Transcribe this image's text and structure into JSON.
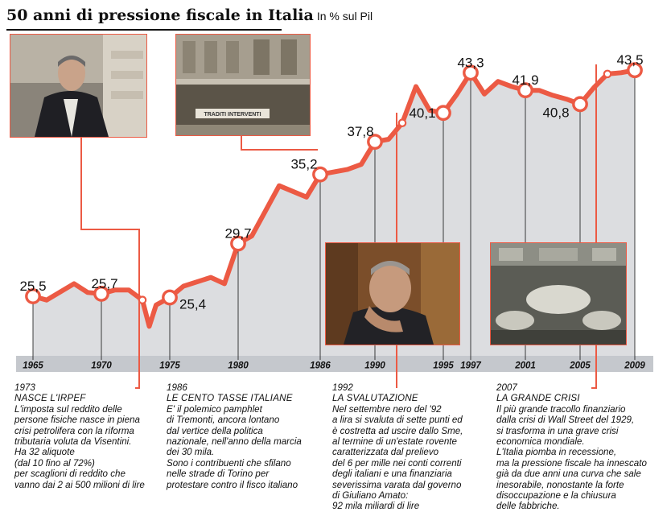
{
  "title": "50 anni di pressione fiscale in Italia",
  "unit": "In % sul Pil",
  "colors": {
    "line": "#ec5a44",
    "band": "#dcdde0",
    "axis": "#c5c8cd",
    "ink": "#111111"
  },
  "chart_data": {
    "type": "area",
    "title": "50 anni di pressione fiscale in Italia",
    "ylabel": "In % sul Pil",
    "xlim": [
      1965,
      2009
    ],
    "ylim": [
      20.5,
      45.5
    ],
    "x_ticks": [
      "1965",
      "1970",
      "1975",
      "1980",
      "1986",
      "1990",
      "1995",
      "1997",
      "2001",
      "2005",
      "2009"
    ],
    "series": [
      {
        "values": [
          {
            "x": 1965,
            "y": 25.5
          },
          {
            "x": 1966,
            "y": 25.2
          },
          {
            "x": 1968,
            "y": 26.5
          },
          {
            "x": 1969,
            "y": 25.8
          },
          {
            "x": 1970,
            "y": 25.7
          },
          {
            "x": 1971,
            "y": 26.0
          },
          {
            "x": 1972,
            "y": 26.0
          },
          {
            "x": 1973,
            "y": 25.2
          },
          {
            "x": 1973.5,
            "y": 23.1
          },
          {
            "x": 1974,
            "y": 24.8
          },
          {
            "x": 1975,
            "y": 25.4
          },
          {
            "x": 1976,
            "y": 26.3
          },
          {
            "x": 1978,
            "y": 27.0
          },
          {
            "x": 1979,
            "y": 26.5
          },
          {
            "x": 1980,
            "y": 29.7
          },
          {
            "x": 1981,
            "y": 30.3
          },
          {
            "x": 1982,
            "y": 32.3
          },
          {
            "x": 1983,
            "y": 34.3
          },
          {
            "x": 1985,
            "y": 33.4
          },
          {
            "x": 1986,
            "y": 35.2
          },
          {
            "x": 1988,
            "y": 35.6
          },
          {
            "x": 1989,
            "y": 36.0
          },
          {
            "x": 1990,
            "y": 37.8
          },
          {
            "x": 1991,
            "y": 38.0
          },
          {
            "x": 1992,
            "y": 39.3
          },
          {
            "x": 1993,
            "y": 42.2
          },
          {
            "x": 1994,
            "y": 40.3
          },
          {
            "x": 1995,
            "y": 40.1
          },
          {
            "x": 1996,
            "y": 41.6
          },
          {
            "x": 1997,
            "y": 43.3
          },
          {
            "x": 1998,
            "y": 41.6
          },
          {
            "x": 1999,
            "y": 42.6
          },
          {
            "x": 2000,
            "y": 42.2
          },
          {
            "x": 2001,
            "y": 41.9
          },
          {
            "x": 2002,
            "y": 41.9
          },
          {
            "x": 2003,
            "y": 41.5
          },
          {
            "x": 2004,
            "y": 41.2
          },
          {
            "x": 2005,
            "y": 40.8
          },
          {
            "x": 2006,
            "y": 42.1
          },
          {
            "x": 2007,
            "y": 43.2
          },
          {
            "x": 2008,
            "y": 43.3
          },
          {
            "x": 2009,
            "y": 43.5
          }
        ]
      }
    ],
    "data_labels": [
      {
        "x": 1965,
        "text": "25,5"
      },
      {
        "x": 1970,
        "text": "25,7"
      },
      {
        "x": 1975,
        "text": "25,4"
      },
      {
        "x": 1980,
        "text": "29,7"
      },
      {
        "x": 1986,
        "text": "35,2"
      },
      {
        "x": 1990,
        "text": "37,8"
      },
      {
        "x": 1995,
        "text": "40,1"
      },
      {
        "x": 1997,
        "text": "43,3"
      },
      {
        "x": 2001,
        "text": "41,9"
      },
      {
        "x": 2005,
        "text": "40,8"
      },
      {
        "x": 2009,
        "text": "43,5"
      }
    ],
    "event_years": [
      1973,
      1986,
      1992,
      2007
    ],
    "grid": false,
    "legend": "none"
  },
  "events": [
    {
      "year": "1973",
      "heading": "NASCE L'IRPEF",
      "text": "L'imposta sul reddito delle\npersone fisiche nasce in piena\ncrisi petrolifera con la riforma\ntributaria voluta da Visentini.\nHa 32 aliquote\n(dal 10 fino al 72%)\nper scaglioni di reddito che\nvanno dai 2 ai 500 milioni di lire"
    },
    {
      "year": "1986",
      "heading": "LE CENTO TASSE ITALIANE",
      "text": "E' il polemico pamphlet\ndi Tremonti, ancora lontano\ndal vertice della politica\nnazionale, nell'anno della marcia\ndei 30 mila.\nSono i contribuenti che sfilano\nnelle strade di Torino per\nprotestare contro il fisco italiano"
    },
    {
      "year": "1992",
      "heading": "LA SVALUTAZIONE",
      "text": "Nel settembre nero del '92\na lira si svaluta di sette punti ed\nè costretta ad uscire dallo Sme,\nal termine di un'estate rovente\ncaratterizzata dal prelievo\ndel 6 per mille nei conti correnti\ndegli italiani e una finanziaria\nseverissima varata dal governo\ndi Giuliano Amato:\n92 mila miliardi di lire"
    },
    {
      "year": "2007",
      "heading": "LA GRANDE CRISI",
      "text": "Il più grande tracollo finanziario\ndalla crisi di Wall Street del 1929,\nsi trasforma in una grave crisi\neconomica mondiale.\nL'Italia piomba in recessione,\nma la pressione fiscale ha innescato\ngià da due anni una curva che sale\ninesorabile, nonostante la forte\ndisoccupazione e la chiusura\ndelle fabbriche."
    }
  ],
  "photos": [
    {
      "subject": "man-in-suit-portrait"
    },
    {
      "subject": "protest-march-street",
      "banner_text": "TRADITI INTERVENTI"
    },
    {
      "subject": "man-hand-on-chin-portrait"
    },
    {
      "subject": "trading-floor"
    }
  ]
}
